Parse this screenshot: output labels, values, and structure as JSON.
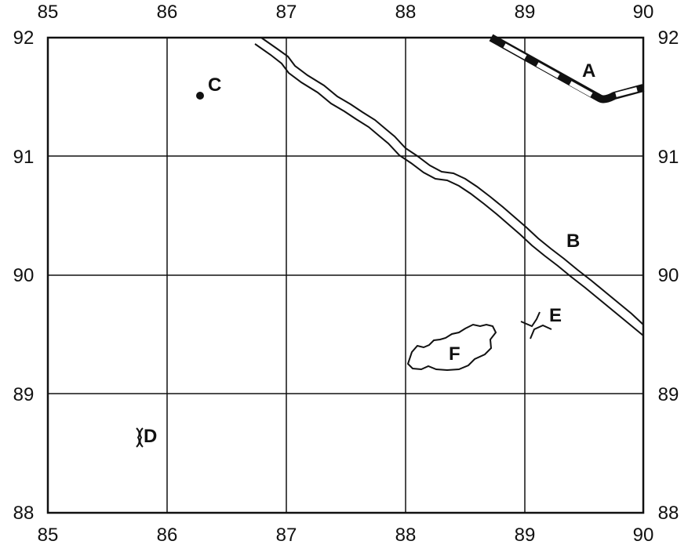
{
  "axes": {
    "x_ticks": [
      "85",
      "86",
      "87",
      "88",
      "89",
      "90"
    ],
    "y_ticks": [
      "92",
      "91",
      "90",
      "89",
      "88"
    ]
  },
  "features": {
    "A": {
      "label": "A"
    },
    "B": {
      "label": "B"
    },
    "C": {
      "label": "C"
    },
    "D": {
      "label": "D"
    },
    "E": {
      "label": "E"
    },
    "F": {
      "label": "F"
    }
  },
  "colors": {
    "ink": "#111111",
    "background": "#ffffff"
  }
}
